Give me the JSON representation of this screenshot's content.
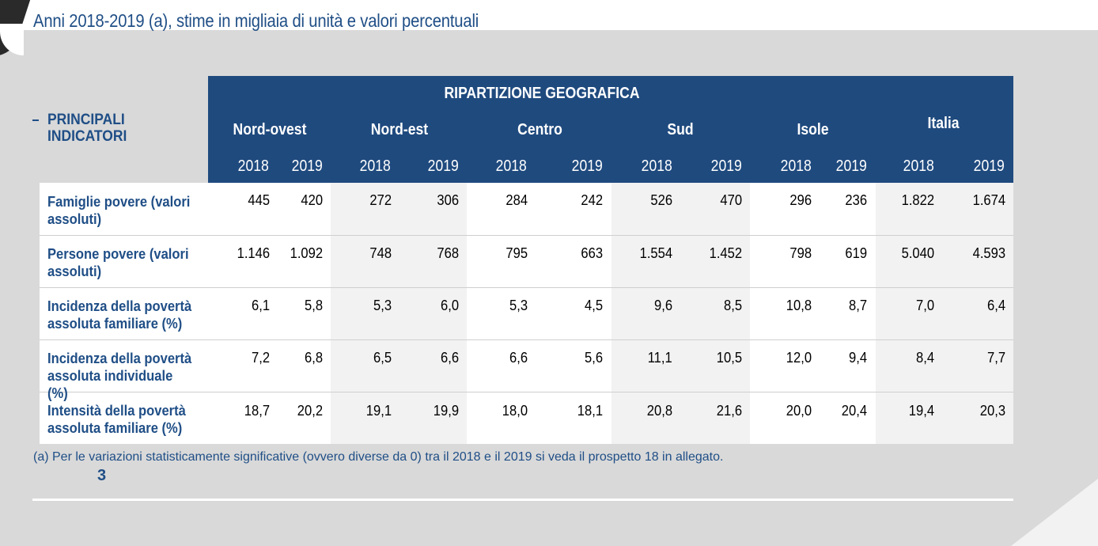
{
  "subtitle": "Anni 2018-2019 (a), stime in migliaia di unità e valori percentuali",
  "table": {
    "row_header": "PRINCIPALI INDICATORI",
    "group_header": "RIPARTIZIONE GEOGRAFICA",
    "regions": [
      "Nord-ovest",
      "Nord-est",
      "Centro",
      "Sud",
      "Isole",
      "Italia"
    ],
    "years": [
      "2018",
      "2019",
      "2018",
      "2019",
      "2018",
      "2019",
      "2018",
      "2019",
      "2018",
      "2019",
      "2018",
      "2019"
    ],
    "rows": [
      {
        "label": "Famiglie povere (valori assoluti)",
        "values": [
          "445",
          "420",
          "272",
          "306",
          "284",
          "242",
          "526",
          "470",
          "296",
          "236",
          "1.822",
          "1.674"
        ]
      },
      {
        "label": "Persone povere (valori assoluti)",
        "values": [
          "1.146",
          "1.092",
          "748",
          "768",
          "795",
          "663",
          "1.554",
          "1.452",
          "798",
          "619",
          "5.040",
          "4.593"
        ]
      },
      {
        "label": "Incidenza della povertà assoluta familiare (%)",
        "values": [
          "6,1",
          "5,8",
          "5,3",
          "6,0",
          "5,3",
          "4,5",
          "9,6",
          "8,5",
          "10,8",
          "8,7",
          "7,0",
          "6,4"
        ]
      },
      {
        "label": "Incidenza della povertà assoluta individuale (%)",
        "values": [
          "7,2",
          "6,8",
          "6,5",
          "6,6",
          "6,6",
          "5,6",
          "11,1",
          "10,5",
          "12,0",
          "9,4",
          "8,4",
          "7,7"
        ]
      },
      {
        "label": "Intensità della povertà assoluta familiare (%)",
        "values": [
          "18,7",
          "20,2",
          "19,1",
          "19,9",
          "18,0",
          "18,1",
          "20,8",
          "21,6",
          "20,0",
          "20,4",
          "19,4",
          "20,3"
        ]
      }
    ]
  },
  "footnote": "(a)  Per le variazioni statisticamente significative (ovvero diverse da 0) tra il 2018 e il 2019 si veda il prospetto 18 in allegato.",
  "page_number": "3",
  "colors": {
    "header_blue": "#1f4a7e",
    "text_blue": "#1f4e86",
    "background_gray": "#d9d9d9"
  }
}
